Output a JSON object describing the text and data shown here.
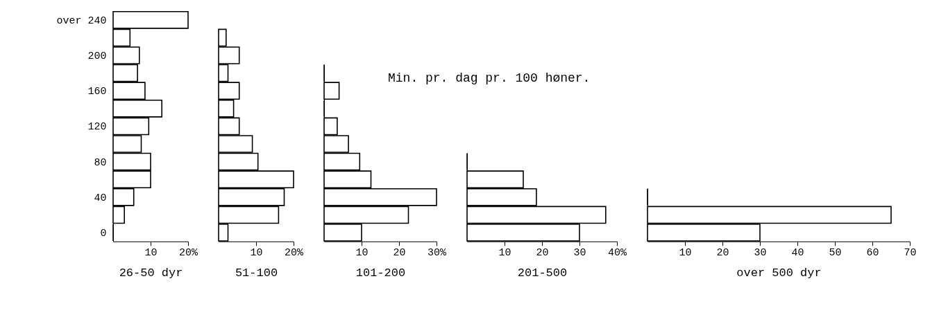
{
  "chart_data": [
    {
      "type": "bar",
      "orientation": "horizontal",
      "xlabel": "26-50 dyr",
      "categories": [
        "over 240",
        null,
        "200",
        null,
        "160",
        null,
        "120",
        null,
        "80",
        null,
        "40",
        null,
        "0"
      ],
      "values": [
        20,
        4.5,
        7,
        6.5,
        8.5,
        13,
        9.5,
        7.5,
        10,
        10,
        5.5,
        3,
        0
      ],
      "color": "#000000",
      "xlim": [
        0,
        20
      ],
      "xticks": [
        10,
        {
          "value": 20,
          "label": "20%"
        }
      ],
      "grid": false
    },
    {
      "type": "bar",
      "orientation": "horizontal",
      "xlabel": "51-100",
      "categories": [
        null,
        null,
        null,
        null,
        null,
        null,
        null,
        null,
        null,
        null,
        null,
        null
      ],
      "values": [
        2,
        5.5,
        2.5,
        5.5,
        4,
        5.5,
        9,
        10.5,
        20,
        17.5,
        16,
        2.5
      ],
      "color": "#000000",
      "xlim": [
        0,
        20
      ],
      "xticks": [
        10,
        {
          "value": 20,
          "label": "20%"
        }
      ],
      "tick_labels": "x",
      "grid": false
    },
    {
      "type": "bar",
      "orientation": "horizontal",
      "title": "Min. pr. dag pr. 100 høner.",
      "xlabel": "101-200",
      "categories": [
        null,
        null,
        null,
        null,
        null,
        null,
        null,
        null,
        null,
        null
      ],
      "values": [
        0,
        4,
        0,
        3.5,
        6.5,
        9.5,
        12.5,
        30,
        22.5,
        10
      ],
      "color": "#000000",
      "xlim": [
        0,
        30
      ],
      "xticks": [
        10,
        20,
        {
          "value": 30,
          "label": "30%"
        }
      ],
      "tick_labels": "x",
      "grid": false
    },
    {
      "type": "bar",
      "orientation": "horizontal",
      "xlabel": "201-500",
      "categories": [
        null,
        null,
        null,
        null,
        null
      ],
      "values": [
        0,
        15,
        18.5,
        37,
        30
      ],
      "color": "#000000",
      "xlim": [
        0,
        40
      ],
      "xticks": [
        10,
        20,
        30,
        {
          "value": 40,
          "label": "40%"
        }
      ],
      "tick_labels": "x",
      "grid": false
    },
    {
      "type": "bar",
      "orientation": "horizontal",
      "xlabel": "over 500 dyr",
      "categories": [
        null,
        null,
        null
      ],
      "values": [
        0,
        65,
        30
      ],
      "color": "#000000",
      "xlim": [
        0,
        70
      ],
      "xticks": [
        10,
        20,
        30,
        40,
        50,
        60,
        70
      ],
      "tick_labels": "x",
      "grid": false
    }
  ]
}
